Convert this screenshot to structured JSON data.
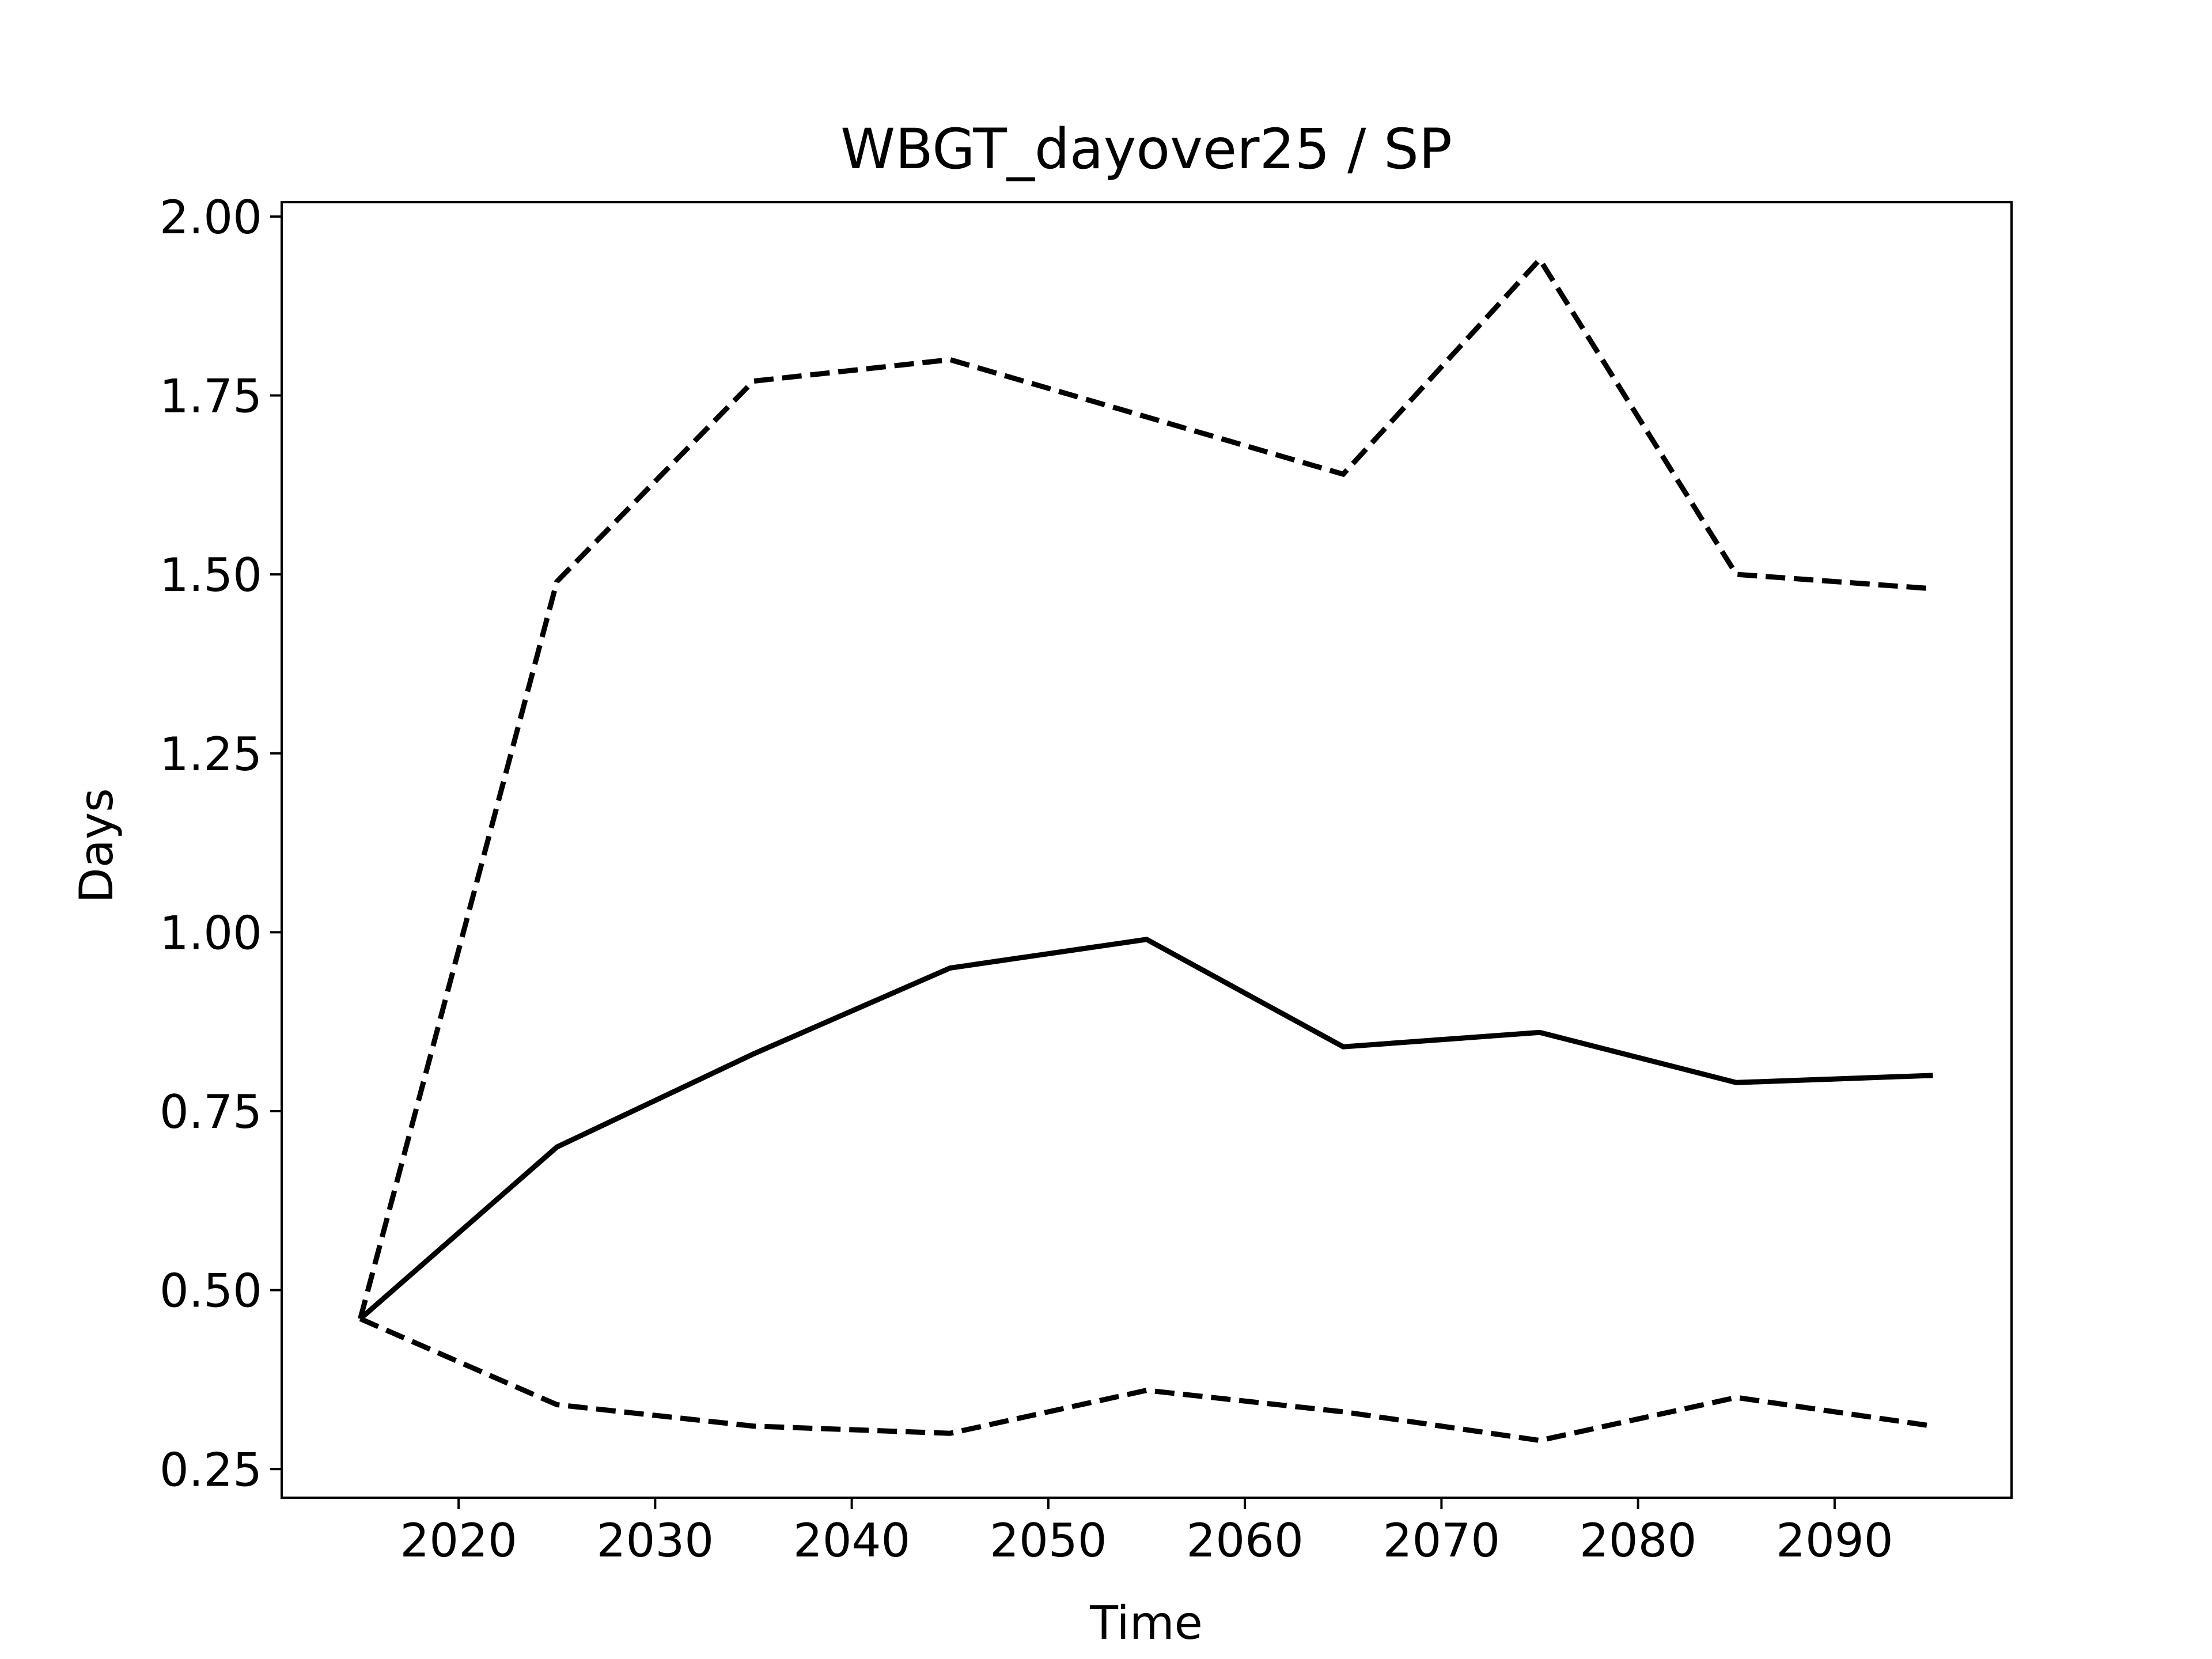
{
  "chart_data": {
    "type": "line",
    "title": "WBGT_dayover25 / SP",
    "xlabel": "Time",
    "ylabel": "Days",
    "xlim": [
      2011,
      2099
    ],
    "ylim": [
      0.21,
      2.02
    ],
    "xticks": [
      2020,
      2030,
      2040,
      2050,
      2060,
      2070,
      2080,
      2090
    ],
    "yticks": [
      "0.25",
      "0.50",
      "0.75",
      "1.00",
      "1.25",
      "1.50",
      "1.75",
      "2.00"
    ],
    "grid": false,
    "x": [
      2015,
      2025,
      2035,
      2045,
      2055,
      2065,
      2075,
      2085,
      2095
    ],
    "series": [
      {
        "style": "dashed",
        "color": "#000000",
        "values": [
          0.46,
          1.49,
          1.77,
          1.8,
          1.72,
          1.64,
          1.94,
          1.5,
          1.48
        ]
      },
      {
        "style": "solid",
        "color": "#000000",
        "values": [
          0.46,
          0.7,
          0.83,
          0.95,
          0.99,
          0.84,
          0.86,
          0.79,
          0.8
        ]
      },
      {
        "style": "dashed",
        "color": "#000000",
        "values": [
          0.46,
          0.34,
          0.31,
          0.3,
          0.36,
          0.33,
          0.29,
          0.35,
          0.31
        ]
      }
    ]
  }
}
